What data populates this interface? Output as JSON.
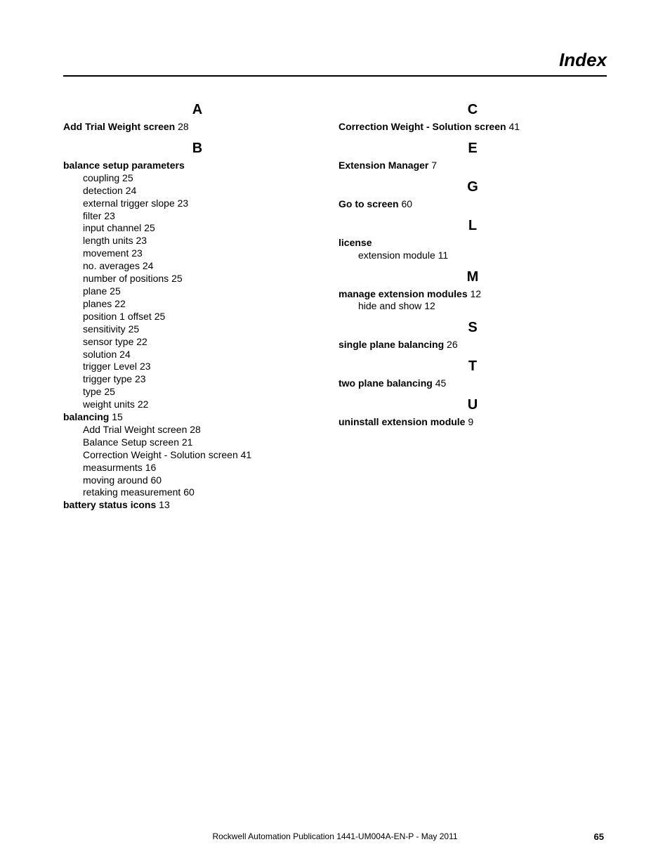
{
  "title": "Index",
  "footer": {
    "text": "Rockwell Automation Publication 1441-UM004A-EN-P - May 2011",
    "page": "65"
  },
  "left": {
    "A": {
      "letter": "A",
      "e0": {
        "term": "Add Trial Weight screen",
        "page": "28"
      }
    },
    "B": {
      "letter": "B",
      "e0": {
        "term": "balance setup parameters",
        "subs": {
          "s0": {
            "t": "coupling",
            "p": "25"
          },
          "s1": {
            "t": "detection",
            "p": "24"
          },
          "s2": {
            "t": "external trigger slope",
            "p": "23"
          },
          "s3": {
            "t": "filter",
            "p": "23"
          },
          "s4": {
            "t": "input channel",
            "p": "25"
          },
          "s5": {
            "t": "length units",
            "p": "23"
          },
          "s6": {
            "t": "movement",
            "p": "23"
          },
          "s7": {
            "t": "no. averages",
            "p": "24"
          },
          "s8": {
            "t": "number of positions",
            "p": "25"
          },
          "s9": {
            "t": "plane",
            "p": "25"
          },
          "s10": {
            "t": "planes",
            "p": "22"
          },
          "s11": {
            "t": "position 1 offset",
            "p": "25"
          },
          "s12": {
            "t": "sensitivity",
            "p": "25"
          },
          "s13": {
            "t": "sensor type",
            "p": "22"
          },
          "s14": {
            "t": "solution",
            "p": "24"
          },
          "s15": {
            "t": "trigger Level",
            "p": "23"
          },
          "s16": {
            "t": "trigger type",
            "p": "23"
          },
          "s17": {
            "t": "type",
            "p": "25"
          },
          "s18": {
            "t": "weight units",
            "p": "22"
          }
        }
      },
      "e1": {
        "term": "balancing",
        "page": "15",
        "subs": {
          "s0": {
            "t": "Add Trial Weight screen",
            "p": "28"
          },
          "s1": {
            "t": "Balance Setup screen",
            "p": "21"
          },
          "s2": {
            "t": "Correction Weight - Solution screen",
            "p": "41"
          },
          "s3": {
            "t": "measurments",
            "p": "16"
          },
          "s4": {
            "t": "moving around",
            "p": "60"
          },
          "s5": {
            "t": "retaking measurement",
            "p": "60"
          }
        }
      },
      "e2": {
        "term": "battery status icons",
        "page": "13"
      }
    }
  },
  "right": {
    "C": {
      "letter": "C",
      "e0": {
        "term": "Correction Weight - Solution screen",
        "page": "41"
      }
    },
    "E": {
      "letter": "E",
      "e0": {
        "term": "Extension Manager",
        "page": "7"
      }
    },
    "G": {
      "letter": "G",
      "e0": {
        "term": "Go to screen",
        "page": "60"
      }
    },
    "L": {
      "letter": "L",
      "e0": {
        "term": "license",
        "subs": {
          "s0": {
            "t": "extension module",
            "p": "11"
          }
        }
      }
    },
    "M": {
      "letter": "M",
      "e0": {
        "term": "manage extension modules",
        "page": "12",
        "subs": {
          "s0": {
            "t": "hide and show",
            "p": "12"
          }
        }
      }
    },
    "S": {
      "letter": "S",
      "e0": {
        "term": "single plane balancing",
        "page": "26"
      }
    },
    "T": {
      "letter": "T",
      "e0": {
        "term": "two plane balancing",
        "page": "45"
      }
    },
    "U": {
      "letter": "U",
      "e0": {
        "term": "uninstall extension module",
        "page": "9"
      }
    }
  }
}
